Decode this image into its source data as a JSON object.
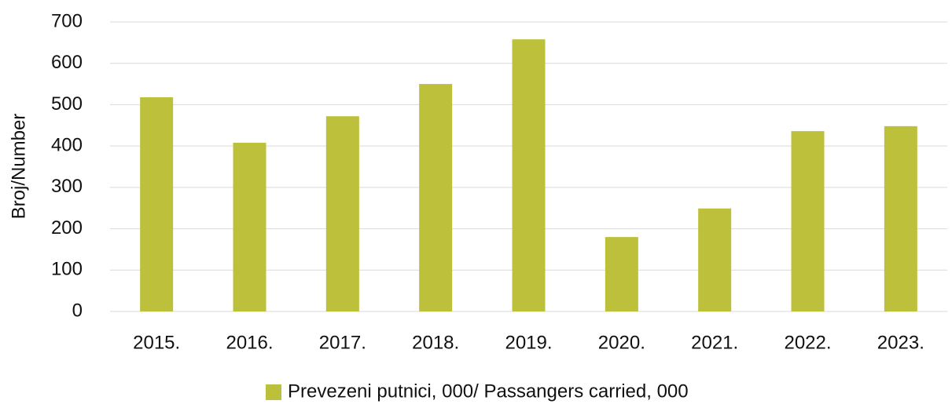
{
  "chart_data": {
    "type": "bar",
    "y_label": "Broj/Number",
    "categories": [
      "2015.",
      "2016.",
      "2017.",
      "2018.",
      "2019.",
      "2020.",
      "2021.",
      "2022.",
      "2023."
    ],
    "series": [
      {
        "name": "Prevezeni putnici, 000/ Passangers carried, 000",
        "color": "#bcc03a",
        "values": [
          518,
          408,
          472,
          550,
          658,
          180,
          249,
          436,
          448
        ]
      }
    ],
    "ylim": [
      0,
      700
    ],
    "yticks": [
      0,
      100,
      200,
      300,
      400,
      500,
      600,
      700
    ],
    "grid": true,
    "legend": "bottom"
  }
}
